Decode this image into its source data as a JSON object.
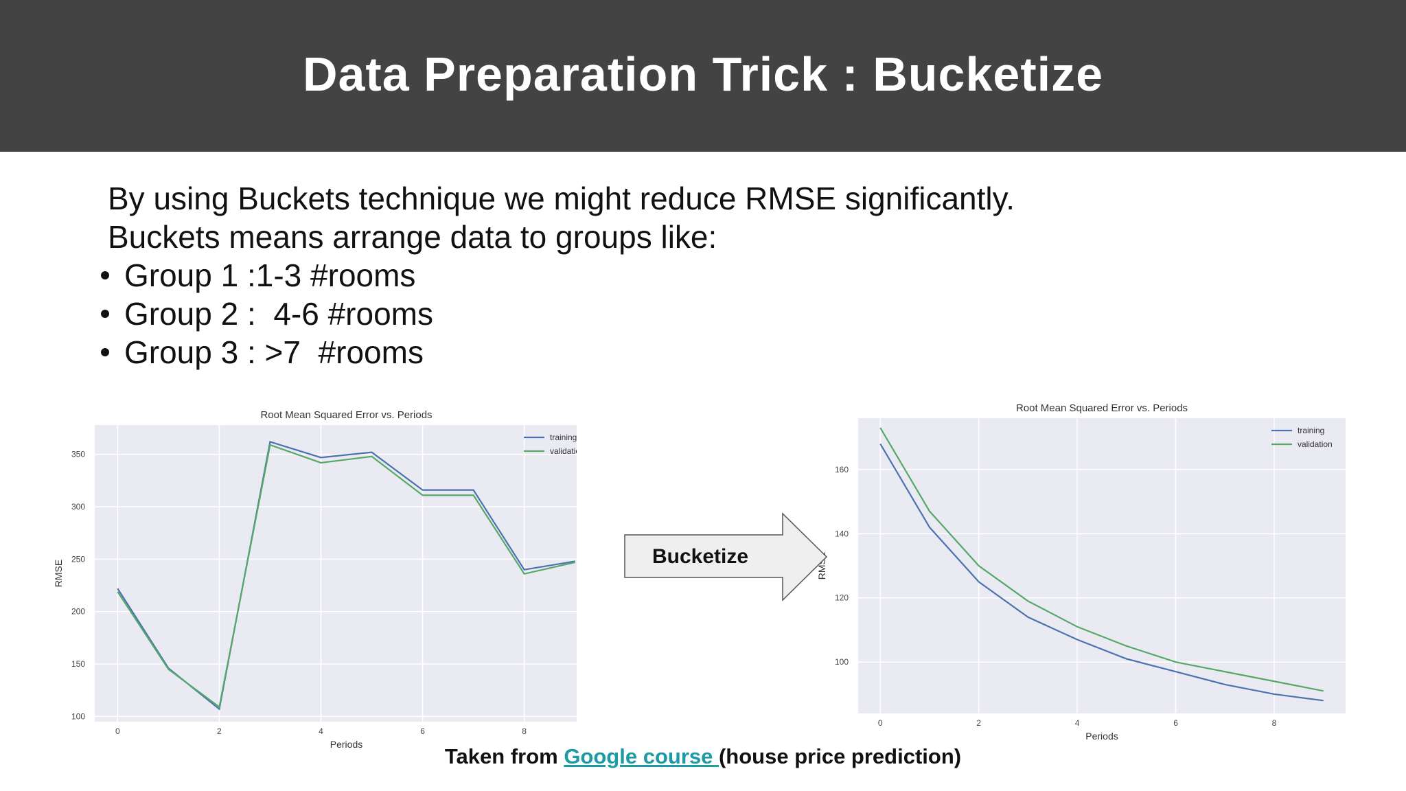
{
  "slide": {
    "title": "Data Preparation Trick : Bucketize",
    "line1": "By using Buckets technique we might reduce RMSE significantly.",
    "line2": "Buckets means arrange data to groups like:",
    "bullets": [
      "Group 1 :1-3 #rooms",
      "Group 2 :  4-6 #rooms",
      "Group 3 : >7  #rooms"
    ],
    "arrow_label": "Bucketize",
    "footer_prefix": "Taken from ",
    "footer_link": "Google course ",
    "footer_suffix": "(house price prediction)",
    "link_color": "#1a9ba5",
    "header_color": "#434343"
  },
  "chart_data": [
    {
      "type": "line",
      "title": "Root Mean Squared Error vs. Periods",
      "xlabel": "Periods",
      "ylabel": "RMSE",
      "x": [
        0,
        1,
        2,
        3,
        4,
        5,
        6,
        7,
        8,
        9
      ],
      "xticks": [
        "0",
        "2",
        "4",
        "6",
        "8"
      ],
      "yticks": [
        "100",
        "150",
        "200",
        "250",
        "300",
        "350"
      ],
      "xlim": [
        -0.45,
        9.45
      ],
      "ylim": [
        95,
        378
      ],
      "grid": true,
      "legend": "top-right",
      "series": [
        {
          "name": "training",
          "color": "#4c72b0",
          "values": [
            222,
            146,
            107,
            362,
            347,
            352,
            316,
            316,
            240,
            248
          ]
        },
        {
          "name": "validation",
          "color": "#55a868",
          "values": [
            219,
            145,
            109,
            359,
            342,
            348,
            311,
            311,
            236,
            247
          ]
        }
      ]
    },
    {
      "type": "line",
      "title": "Root Mean Squared Error vs. Periods",
      "xlabel": "Periods",
      "ylabel": "RMSE",
      "x": [
        0,
        1,
        2,
        3,
        4,
        5,
        6,
        7,
        8,
        9
      ],
      "xticks": [
        "0",
        "2",
        "4",
        "6",
        "8"
      ],
      "yticks": [
        "100",
        "120",
        "140",
        "160"
      ],
      "xlim": [
        -0.45,
        9.45
      ],
      "ylim": [
        84,
        176
      ],
      "grid": true,
      "legend": "top-right",
      "series": [
        {
          "name": "training",
          "color": "#4c72b0",
          "values": [
            168,
            142,
            125,
            114,
            107,
            101,
            97,
            93,
            90,
            88
          ]
        },
        {
          "name": "validation",
          "color": "#55a868",
          "values": [
            173,
            147,
            130,
            119,
            111,
            105,
            100,
            97,
            94,
            91
          ]
        }
      ]
    }
  ]
}
